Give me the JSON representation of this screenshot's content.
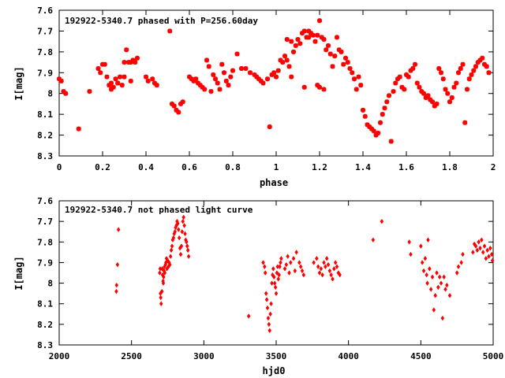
{
  "chart_data": [
    {
      "type": "scatter",
      "title": "192922-5340.7 phased with P=256.60day",
      "xlabel": "phase",
      "ylabel": "I[mag]",
      "xlim": [
        0,
        2
      ],
      "ylim": [
        8.3,
        7.6
      ],
      "y_inverted": true,
      "xticks": [
        "0",
        "0.2",
        "0.4",
        "0.6",
        "0.8",
        "1",
        "1.2",
        "1.4",
        "1.6",
        "1.8",
        "2"
      ],
      "yticks": [
        "7.6",
        "7.7",
        "7.8",
        "7.9",
        "8",
        "8.1",
        "8.2",
        "8.3"
      ],
      "marker": "star",
      "color": "#ff0000",
      "x": [
        0.0,
        0.01,
        0.02,
        0.03,
        0.09,
        0.14,
        0.18,
        0.19,
        0.2,
        0.21,
        0.22,
        0.23,
        0.24,
        0.25,
        0.26,
        0.27,
        0.28,
        0.29,
        0.3,
        0.31,
        0.32,
        0.33,
        0.34,
        0.35,
        0.36,
        0.4,
        0.41,
        0.43,
        0.44,
        0.45,
        0.51,
        0.52,
        0.53,
        0.54,
        0.55,
        0.56,
        0.57,
        0.6,
        0.61,
        0.62,
        0.63,
        0.64,
        0.65,
        0.66,
        0.67,
        0.68,
        0.69,
        0.7,
        0.71,
        0.72,
        0.73,
        0.74,
        0.75,
        0.76,
        0.77,
        0.78,
        0.79,
        0.8,
        0.82,
        0.84,
        0.86,
        0.88,
        0.9,
        0.91,
        0.92,
        0.93,
        0.94,
        0.96,
        0.97,
        0.98,
        0.99,
        1.0,
        1.01,
        1.02,
        1.03,
        1.04,
        1.05,
        1.06,
        1.07,
        1.08,
        1.09,
        1.1,
        1.11,
        1.12,
        1.13,
        1.14,
        1.15,
        1.16,
        1.17,
        1.18,
        1.19,
        1.2,
        1.21,
        1.22,
        1.23,
        1.24,
        1.25,
        1.26,
        1.27,
        1.28,
        1.29,
        1.3,
        1.31,
        1.32,
        1.33,
        1.34,
        1.35,
        1.36,
        1.37,
        1.38,
        1.39,
        1.4,
        1.41,
        1.42,
        1.43,
        1.44,
        1.45,
        1.46,
        1.47,
        1.48,
        1.49,
        1.5,
        1.51,
        1.52,
        1.53,
        1.54,
        1.55,
        1.56,
        1.57,
        1.58,
        1.59,
        1.6,
        1.61,
        1.62,
        1.63,
        1.64,
        1.65,
        1.66,
        1.67,
        1.68,
        1.69,
        1.7,
        1.71,
        1.72,
        1.73,
        1.74,
        1.75,
        1.76,
        1.77,
        1.78,
        1.79,
        1.8,
        1.81,
        1.82,
        1.83,
        1.84,
        1.85,
        1.86,
        1.87,
        1.88,
        1.89,
        1.9,
        1.91,
        1.92,
        1.93,
        1.94,
        1.95,
        1.96,
        1.97,
        1.98,
        0.3,
        0.33,
        0.27,
        0.24,
        1.19,
        1.2,
        1.22,
        1.13,
        1.15,
        1.05,
        1.07
      ],
      "y": [
        7.93,
        7.94,
        7.99,
        8.0,
        8.17,
        7.99,
        7.88,
        7.9,
        7.86,
        7.86,
        7.92,
        7.96,
        7.95,
        7.97,
        7.93,
        7.95,
        7.92,
        7.96,
        7.85,
        7.79,
        7.85,
        7.85,
        7.84,
        7.85,
        7.83,
        7.92,
        7.94,
        7.93,
        7.95,
        7.96,
        7.7,
        8.05,
        8.06,
        8.08,
        8.09,
        8.05,
        8.04,
        7.92,
        7.93,
        7.94,
        7.93,
        7.95,
        7.96,
        7.97,
        7.98,
        7.84,
        7.87,
        7.99,
        7.91,
        7.93,
        7.95,
        7.98,
        7.86,
        7.9,
        7.94,
        7.96,
        7.92,
        7.89,
        7.81,
        7.88,
        7.88,
        7.9,
        7.91,
        7.92,
        7.93,
        7.94,
        7.95,
        7.93,
        8.16,
        7.91,
        7.9,
        7.92,
        7.89,
        7.84,
        7.85,
        7.82,
        7.84,
        7.87,
        7.92,
        7.8,
        7.77,
        7.74,
        7.76,
        7.71,
        7.7,
        7.73,
        7.7,
        7.71,
        7.72,
        7.75,
        7.72,
        7.65,
        7.73,
        7.74,
        7.79,
        7.77,
        7.81,
        7.87,
        7.82,
        7.73,
        7.79,
        7.8,
        7.86,
        7.83,
        7.85,
        7.88,
        7.9,
        7.93,
        7.98,
        7.92,
        7.96,
        8.08,
        8.11,
        8.15,
        8.16,
        8.17,
        8.18,
        8.2,
        8.19,
        8.14,
        8.1,
        8.07,
        8.04,
        8.01,
        8.23,
        7.99,
        7.95,
        7.93,
        7.92,
        7.97,
        7.98,
        7.91,
        7.92,
        7.89,
        7.88,
        7.86,
        7.95,
        7.97,
        7.99,
        8.0,
        8.02,
        8.01,
        8.03,
        8.04,
        8.06,
        8.05,
        7.88,
        7.9,
        7.93,
        7.98,
        8.0,
        8.04,
        8.02,
        7.97,
        7.95,
        7.9,
        7.88,
        7.86,
        8.14,
        7.98,
        7.93,
        7.91,
        7.89,
        7.87,
        7.85,
        7.84,
        7.83,
        7.86,
        7.87,
        7.9,
        7.92,
        7.94,
        7.95,
        7.98,
        7.96,
        7.97,
        7.98,
        7.97,
        7.73,
        7.74,
        7.75
      ]
    },
    {
      "type": "scatter",
      "title": "192922-5340.7 not phased light curve",
      "xlabel": "hjd0",
      "ylabel": "I[mag]",
      "xlim": [
        2000,
        5000
      ],
      "ylim": [
        8.3,
        7.6
      ],
      "y_inverted": true,
      "xticks": [
        "2000",
        "2500",
        "3000",
        "3500",
        "4000",
        "4500",
        "5000"
      ],
      "yticks": [
        "7.6",
        "7.7",
        "7.8",
        "7.9",
        "8",
        "8.1",
        "8.2",
        "8.3"
      ],
      "marker": "diamond",
      "color": "#ff0000",
      "x": [
        2395,
        2397,
        2403,
        2410,
        2695,
        2698,
        2700,
        2702,
        2705,
        2710,
        2712,
        2715,
        2718,
        2720,
        2722,
        2725,
        2728,
        2730,
        2735,
        2738,
        2742,
        2745,
        2750,
        2755,
        2760,
        2765,
        2770,
        2775,
        2780,
        2785,
        2790,
        2795,
        2800,
        2805,
        2810,
        2815,
        2820,
        2825,
        2830,
        2835,
        2840,
        2845,
        2850,
        2855,
        2860,
        2865,
        2870,
        2875,
        2880,
        2885,
        2890,
        2895,
        3310,
        3410,
        3420,
        3425,
        3430,
        3435,
        3440,
        3445,
        3450,
        3455,
        3460,
        3465,
        3470,
        3475,
        3480,
        3485,
        3490,
        3495,
        3500,
        3505,
        3510,
        3515,
        3520,
        3525,
        3530,
        3535,
        3560,
        3570,
        3580,
        3590,
        3600,
        3620,
        3630,
        3640,
        3660,
        3670,
        3680,
        3690,
        3760,
        3780,
        3790,
        3800,
        3810,
        3820,
        3830,
        3840,
        3850,
        3860,
        3870,
        3880,
        3890,
        3900,
        3910,
        3920,
        3930,
        3940,
        4170,
        4230,
        4420,
        4430,
        4500,
        4510,
        4520,
        4530,
        4540,
        4545,
        4550,
        4560,
        4570,
        4580,
        4590,
        4600,
        4610,
        4620,
        4630,
        4640,
        4650,
        4660,
        4670,
        4680,
        4700,
        4750,
        4760,
        4780,
        4790,
        4860,
        4870,
        4880,
        4890,
        4900,
        4910,
        4920,
        4930,
        4940,
        4950,
        4960,
        4970,
        4980,
        4990,
        4995
      ],
      "y": [
        8.04,
        8.01,
        7.91,
        7.74,
        7.95,
        7.93,
        8.05,
        8.07,
        8.1,
        8.04,
        7.93,
        7.96,
        7.99,
        8.0,
        7.97,
        7.94,
        7.92,
        7.95,
        7.91,
        7.9,
        7.88,
        7.93,
        7.89,
        7.92,
        7.9,
        7.91,
        7.87,
        7.84,
        7.82,
        7.79,
        7.78,
        7.76,
        7.75,
        7.73,
        7.72,
        7.7,
        7.71,
        7.74,
        7.78,
        7.83,
        7.86,
        7.82,
        7.75,
        7.7,
        7.68,
        7.72,
        7.76,
        7.79,
        7.8,
        7.82,
        7.84,
        7.87,
        8.16,
        7.9,
        7.92,
        7.95,
        8.05,
        8.08,
        8.12,
        8.17,
        8.2,
        8.23,
        8.15,
        8.1,
        8.0,
        7.96,
        7.93,
        7.97,
        8.0,
        8.02,
        8.05,
        7.95,
        7.92,
        7.98,
        7.96,
        7.92,
        7.9,
        7.88,
        7.93,
        7.91,
        7.87,
        7.95,
        7.9,
        7.88,
        7.94,
        7.85,
        7.9,
        7.92,
        7.94,
        7.96,
        7.9,
        7.88,
        7.92,
        7.95,
        7.93,
        7.96,
        7.9,
        7.92,
        7.88,
        7.91,
        7.94,
        7.96,
        7.98,
        7.93,
        7.9,
        7.92,
        7.95,
        7.96,
        7.79,
        7.7,
        7.8,
        7.86,
        7.82,
        7.9,
        7.94,
        7.88,
        7.96,
        8.0,
        7.79,
        7.93,
        8.03,
        7.97,
        8.13,
        8.06,
        7.95,
        8.02,
        7.97,
        8.0,
        8.17,
        7.97,
        8.03,
        8.01,
        8.06,
        7.95,
        7.92,
        7.9,
        7.86,
        7.85,
        7.81,
        7.82,
        7.84,
        7.8,
        7.83,
        7.79,
        7.85,
        7.82,
        7.88,
        7.84,
        7.87,
        7.83,
        7.86,
        7.89
      ]
    }
  ]
}
